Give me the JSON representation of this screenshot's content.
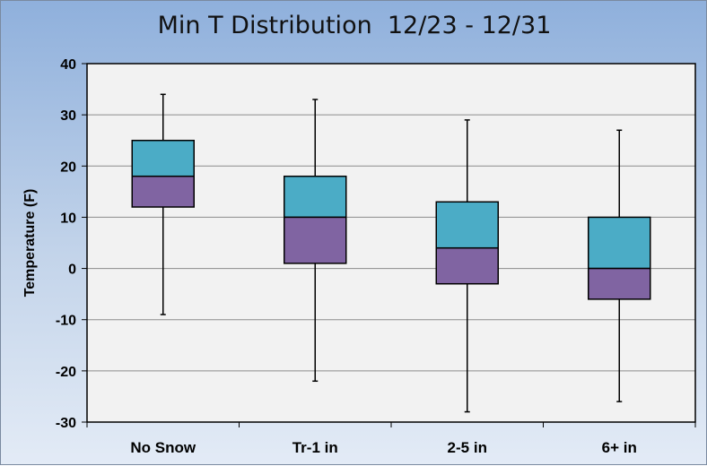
{
  "chart_data": {
    "type": "boxplot",
    "title": "Min T Distribution  12/23 - 12/31",
    "ylabel": "Temperature (F)",
    "xlabel": "",
    "ylim": [
      -30,
      40
    ],
    "yticks": [
      -30,
      -20,
      -10,
      0,
      10,
      20,
      30,
      40
    ],
    "grid": true,
    "categories": [
      "No Snow",
      "Tr-1 in",
      "2-5 in",
      "6+ in"
    ],
    "boxes": [
      {
        "min": -9,
        "q1": 12,
        "median": 18,
        "q3": 25,
        "max": 34
      },
      {
        "min": -22,
        "q1": 1,
        "median": 10,
        "q3": 18,
        "max": 33
      },
      {
        "min": -28,
        "q1": -3,
        "median": 4,
        "q3": 13,
        "max": 29
      },
      {
        "min": -26,
        "q1": -6,
        "median": 0,
        "q3": 10,
        "max": 27
      }
    ],
    "colors": {
      "upper_box": "#4bacc6",
      "lower_box": "#8064a2",
      "plot_background": "#f2f2f2",
      "gridline": "#8c8c8c"
    }
  }
}
